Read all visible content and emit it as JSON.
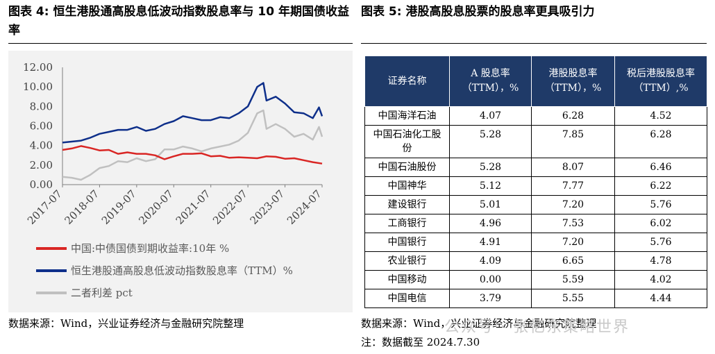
{
  "left_title": "图表 4:  恒生港股通高股息低波动指数股息率与 10 年期国债收益率",
  "right_title": "图表 5:  港股高股息股票的股息率更具吸引力",
  "left_source": "数据来源：Wind，兴业证券经济与金融研究院整理",
  "right_source": "数据来源：Wind，兴业证券经济与金融研究院整理",
  "right_note": "注：数据截至 2024.7.30",
  "watermark": "公众号 · 张忆东策略世界",
  "colors": {
    "red": "#d92624",
    "navy": "#0e2f8a",
    "gray": "#c0c0c0",
    "header_bg": "#1f3a68"
  },
  "chart_data": {
    "type": "line",
    "x_ticks": [
      "2017-07",
      "2018-07",
      "2019-07",
      "2020-07",
      "2021-07",
      "2022-07",
      "2023-07",
      "2024-07"
    ],
    "y_ticks": [
      "12.00",
      "10.00",
      "8.00",
      "6.00",
      "4.00",
      "2.00",
      "0.00"
    ],
    "ylim": [
      0,
      12
    ],
    "x_range": [
      "2017-07",
      "2024-07"
    ],
    "legend_position": "bottom",
    "series": [
      {
        "name": "中国:中债国债到期收益率:10年 %",
        "color": "#d92624",
        "x": [
          "2017-07",
          "2017-10",
          "2018-01",
          "2018-04",
          "2018-07",
          "2018-10",
          "2019-01",
          "2019-04",
          "2019-07",
          "2019-10",
          "2020-01",
          "2020-04",
          "2020-07",
          "2020-10",
          "2021-01",
          "2021-04",
          "2021-07",
          "2021-10",
          "2022-01",
          "2022-04",
          "2022-07",
          "2022-10",
          "2023-01",
          "2023-04",
          "2023-07",
          "2023-10",
          "2024-01",
          "2024-04",
          "2024-07"
        ],
        "values": [
          3.55,
          3.7,
          3.95,
          3.75,
          3.5,
          3.55,
          3.15,
          3.3,
          3.15,
          3.15,
          3.0,
          2.6,
          2.9,
          3.15,
          3.15,
          3.2,
          2.9,
          2.95,
          2.75,
          2.8,
          2.75,
          2.7,
          2.9,
          2.85,
          2.65,
          2.7,
          2.5,
          2.3,
          2.15
        ]
      },
      {
        "name": "恒生港股通高股息低波动指数股息率（TTM）%",
        "color": "#0e2f8a",
        "x": [
          "2017-07",
          "2017-10",
          "2018-01",
          "2018-04",
          "2018-07",
          "2018-10",
          "2019-01",
          "2019-04",
          "2019-07",
          "2019-10",
          "2020-01",
          "2020-04",
          "2020-07",
          "2020-10",
          "2021-01",
          "2021-04",
          "2021-07",
          "2021-10",
          "2022-01",
          "2022-04",
          "2022-07",
          "2022-10",
          "2022-12",
          "2023-01",
          "2023-04",
          "2023-07",
          "2023-10",
          "2024-01",
          "2024-04",
          "2024-06",
          "2024-07"
        ],
        "values": [
          4.3,
          4.4,
          4.5,
          4.8,
          5.2,
          5.4,
          5.6,
          5.6,
          5.9,
          5.5,
          5.7,
          6.2,
          6.5,
          7.0,
          6.8,
          6.6,
          6.6,
          6.9,
          6.8,
          7.3,
          8.0,
          10.0,
          10.4,
          8.6,
          9.0,
          8.3,
          7.4,
          7.3,
          6.8,
          7.9,
          7.0
        ]
      },
      {
        "name": "二者利差 pct",
        "color": "#c0c0c0",
        "x": [
          "2017-07",
          "2017-10",
          "2018-01",
          "2018-04",
          "2018-07",
          "2018-10",
          "2019-01",
          "2019-04",
          "2019-07",
          "2019-10",
          "2020-01",
          "2020-04",
          "2020-07",
          "2020-10",
          "2021-01",
          "2021-04",
          "2021-07",
          "2021-10",
          "2022-01",
          "2022-04",
          "2022-07",
          "2022-10",
          "2022-12",
          "2023-01",
          "2023-04",
          "2023-07",
          "2023-10",
          "2024-01",
          "2024-04",
          "2024-06",
          "2024-07"
        ],
        "values": [
          0.8,
          0.7,
          0.5,
          1.0,
          1.7,
          1.9,
          2.4,
          2.3,
          2.7,
          2.4,
          2.6,
          3.6,
          3.6,
          3.9,
          3.7,
          3.4,
          3.7,
          3.9,
          4.1,
          4.5,
          5.3,
          7.3,
          7.6,
          5.7,
          6.2,
          5.7,
          4.9,
          5.2,
          4.6,
          5.9,
          4.9
        ]
      }
    ]
  },
  "table": {
    "headers": [
      "证券名称",
      "A 股息率（TTM），%",
      "港股股息率（TTM），%",
      "税后港股股息率（TTM）,%"
    ],
    "rows": [
      [
        "中国海洋石油",
        "4.07",
        "6.28",
        "4.52"
      ],
      [
        "中国石油化工股份",
        "5.28",
        "7.85",
        "6.28"
      ],
      [
        "中国石油股份",
        "5.28",
        "8.07",
        "6.46"
      ],
      [
        "中国神华",
        "5.12",
        "7.77",
        "6.22"
      ],
      [
        "建设银行",
        "5.01",
        "7.20",
        "5.76"
      ],
      [
        "工商银行",
        "4.96",
        "7.53",
        "6.02"
      ],
      [
        "中国银行",
        "4.91",
        "7.20",
        "5.76"
      ],
      [
        "农业银行",
        "4.09",
        "6.65",
        "4.78"
      ],
      [
        "中国移动",
        "0.00",
        "5.59",
        "4.02"
      ],
      [
        "中国电信",
        "3.79",
        "5.55",
        "4.44"
      ]
    ]
  }
}
